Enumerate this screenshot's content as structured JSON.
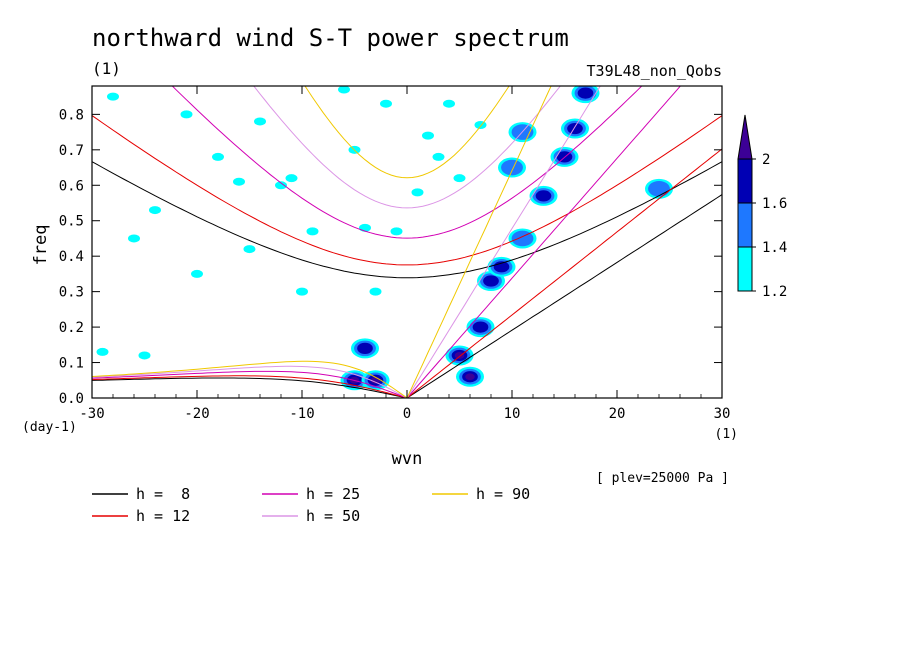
{
  "chart_data": {
    "type": "contour",
    "title": "northward wind S-T power spectrum",
    "units_label": "(1)",
    "run_label": "T39L48_non_Qobs",
    "xlabel": "wvn",
    "ylabel": "freq",
    "x_units": "(1)",
    "y_units": "(day-1)",
    "footnote": "[ plev=25000 Pa ]",
    "xlim": [
      -30,
      30
    ],
    "ylim": [
      0,
      0.88
    ],
    "x_ticks": [
      -30,
      -20,
      -10,
      0,
      10,
      20,
      30
    ],
    "x_tick_labels": [
      "-30",
      "-20",
      "-10",
      "0",
      "10",
      "20",
      "30"
    ],
    "y_ticks": [
      0.0,
      0.1,
      0.2,
      0.3,
      0.4,
      0.5,
      0.6,
      0.7,
      0.8
    ],
    "y_tick_labels": [
      "0.0",
      "0.1",
      "0.2",
      "0.3",
      "0.4",
      "0.5",
      "0.6",
      "0.7",
      "0.8"
    ],
    "colorbar": {
      "levels": [
        1.2,
        1.4,
        1.6,
        2
      ],
      "level_labels": [
        "1.2",
        "1.4",
        "1.6",
        "2"
      ],
      "colors": [
        "#00ffff",
        "#1e78ff",
        "#0000b4",
        "#3c0096"
      ]
    },
    "dispersion_legend": [
      {
        "label": "h =  8",
        "color": "#000000"
      },
      {
        "label": "h = 12",
        "color": "#e60000"
      },
      {
        "label": "h = 25",
        "color": "#d200b4"
      },
      {
        "label": "h = 50",
        "color": "#dc96e6"
      },
      {
        "label": "h = 90",
        "color": "#f0c800"
      }
    ],
    "equivalent_depths": [
      8,
      12,
      25,
      50,
      90
    ],
    "contour_blobs": [
      {
        "x": -5,
        "y": 0.05,
        "level": 4
      },
      {
        "x": -3,
        "y": 0.05,
        "level": 4
      },
      {
        "x": -4,
        "y": 0.14,
        "level": 3
      },
      {
        "x": 5,
        "y": 0.12,
        "level": 4
      },
      {
        "x": 6,
        "y": 0.06,
        "level": 4
      },
      {
        "x": 7,
        "y": 0.2,
        "level": 3
      },
      {
        "x": 8,
        "y": 0.33,
        "level": 3
      },
      {
        "x": 9,
        "y": 0.37,
        "level": 3
      },
      {
        "x": 11,
        "y": 0.45,
        "level": 2
      },
      {
        "x": 13,
        "y": 0.57,
        "level": 3
      },
      {
        "x": 15,
        "y": 0.68,
        "level": 3
      },
      {
        "x": 16,
        "y": 0.76,
        "level": 3
      },
      {
        "x": 17,
        "y": 0.86,
        "level": 3
      },
      {
        "x": 11,
        "y": 0.75,
        "level": 2
      },
      {
        "x": 24,
        "y": 0.59,
        "level": 2
      },
      {
        "x": 10,
        "y": 0.65,
        "level": 2
      }
    ],
    "scatter_patches": [
      {
        "x": -28,
        "y": 0.85
      },
      {
        "x": -24,
        "y": 0.53
      },
      {
        "x": -21,
        "y": 0.8
      },
      {
        "x": -18,
        "y": 0.68
      },
      {
        "x": -16,
        "y": 0.61
      },
      {
        "x": -15,
        "y": 0.42
      },
      {
        "x": -14,
        "y": 0.78
      },
      {
        "x": -12,
        "y": 0.6
      },
      {
        "x": -10,
        "y": 0.3
      },
      {
        "x": -9,
        "y": 0.47
      },
      {
        "x": -6,
        "y": 0.87
      },
      {
        "x": -5,
        "y": 0.7
      },
      {
        "x": -4,
        "y": 0.48
      },
      {
        "x": -3,
        "y": 0.3
      },
      {
        "x": -1,
        "y": 0.47
      },
      {
        "x": 2,
        "y": 0.74
      },
      {
        "x": 4,
        "y": 0.83
      },
      {
        "x": 3,
        "y": 0.68
      },
      {
        "x": 5,
        "y": 0.62
      },
      {
        "x": 1,
        "y": 0.58
      },
      {
        "x": -2,
        "y": 0.83
      },
      {
        "x": -11,
        "y": 0.62
      },
      {
        "x": 7,
        "y": 0.77
      },
      {
        "x": -26,
        "y": 0.45
      },
      {
        "x": -20,
        "y": 0.35
      },
      {
        "x": -25,
        "y": 0.12
      },
      {
        "x": -29,
        "y": 0.13
      }
    ]
  }
}
